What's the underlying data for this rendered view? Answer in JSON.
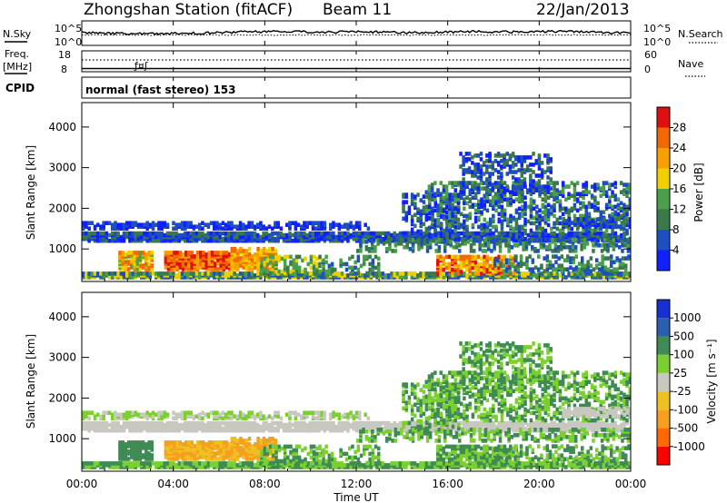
{
  "header": {
    "title": "Zhongshan Station (fitACF)",
    "beam": "Beam 11",
    "date": "22/Jan/2013"
  },
  "noise_panel": {
    "left_label": "N.Sky",
    "left_ticks": [
      "10^5",
      "10^0"
    ],
    "right_ticks": [
      "10^5",
      "10^0"
    ],
    "right_label": "N.Search"
  },
  "freq_panel": {
    "left_label_1": "Freq.",
    "left_label_2": "[MHz]",
    "left_ticks": [
      "18",
      "8"
    ],
    "right_ticks": [
      "60",
      "0"
    ],
    "right_label": "Nave"
  },
  "cpid_panel": {
    "label": "CPID",
    "text": "normal (fast stereo) 153"
  },
  "colors": {
    "power": [
      "#1020ff",
      "#1c4fbf",
      "#3a7a4a",
      "#4aa04a",
      "#f0d000",
      "#f7a000",
      "#f06a00",
      "#e01010"
    ],
    "velocity": [
      "#ff0000",
      "#ff6a00",
      "#f59f20",
      "#f0c020",
      "#c8c8c0",
      "#7ad030",
      "#3f8a55",
      "#2a5fb0",
      "#1a2fd0"
    ]
  },
  "chart_data": [
    {
      "type": "heatmap",
      "name": "power",
      "ylabel": "Slant Range [km]",
      "xlabel": "",
      "y_ticks": [
        "1000",
        "2000",
        "3000",
        "4000"
      ],
      "ylim": [
        200,
        4600
      ],
      "colorbar_label": "Power [dB]",
      "colorbar_ticks": [
        "4",
        "8",
        "12",
        "16",
        "20",
        "24",
        "28"
      ]
    },
    {
      "type": "heatmap",
      "name": "velocity",
      "ylabel": "Slant Range [km]",
      "xlabel": "Time UT",
      "x_ticks": [
        "00:00",
        "04:00",
        "08:00",
        "12:00",
        "16:00",
        "20:00",
        "00:00"
      ],
      "y_ticks": [
        "1000",
        "2000",
        "3000",
        "4000"
      ],
      "ylim": [
        200,
        4600
      ],
      "colorbar_label": "Velocity [m s⁻¹]",
      "colorbar_ticks": [
        "1000",
        "500",
        "100",
        "25",
        "-25",
        "-100",
        "-500",
        "-1000"
      ]
    }
  ]
}
